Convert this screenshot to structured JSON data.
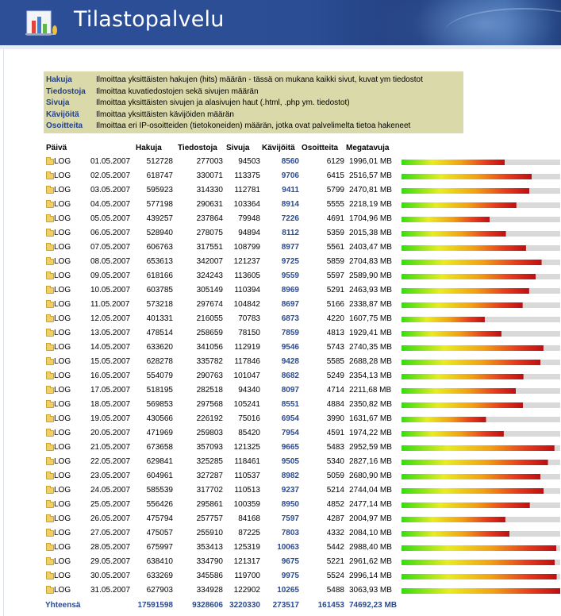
{
  "app": {
    "title": "Tilastopalvelu",
    "logo_icon": "bar-chart-logo-icon"
  },
  "legend": [
    {
      "term": "Hakuja",
      "desc": "Ilmoittaa yksittäisten hakujen (hits) määrän - tässä on mukana kaikki sivut, kuvat ym tiedostot"
    },
    {
      "term": "Tiedostoja",
      "desc": "Ilmoittaa kuvatiedostojen sekä sivujen määrän"
    },
    {
      "term": "Sivuja",
      "desc": "Ilmoittaa yksittäisten sivujen ja alasivujen haut (.html, .php ym. tiedostot)"
    },
    {
      "term": "Kävijöitä",
      "desc": "Ilmoittaa yksittäisten kävijöiden määrän"
    },
    {
      "term": "Osoitteita",
      "desc": "Ilmoittaa eri IP-osoitteiden (tietokoneiden) määrän, jotka ovat palvelimelta tietoa hakeneet"
    }
  ],
  "table": {
    "headers": {
      "day": "Päivä",
      "hakuja": "Hakuja",
      "tiedostoja": "Tiedostoja",
      "sivuja": "Sivuja",
      "kavijoita": "Kävijöitä",
      "osoitteita": "Osoitteita",
      "megatavuja": "Megatavuja"
    },
    "log_label": "LOG",
    "bar_max_mb": 3063.93,
    "rows": [
      {
        "date": "01.05.2007",
        "hakuja": "512728",
        "tiedostoja": "277003",
        "sivuja": "94503",
        "kavijoita": "8560",
        "osoitteita": "6129",
        "mb": "1996,01 MB",
        "mb_value": 1996.01
      },
      {
        "date": "02.05.2007",
        "hakuja": "618747",
        "tiedostoja": "330071",
        "sivuja": "113375",
        "kavijoita": "9706",
        "osoitteita": "6415",
        "mb": "2516,57 MB",
        "mb_value": 2516.57
      },
      {
        "date": "03.05.2007",
        "hakuja": "595923",
        "tiedostoja": "314330",
        "sivuja": "112781",
        "kavijoita": "9411",
        "osoitteita": "5799",
        "mb": "2470,81 MB",
        "mb_value": 2470.81
      },
      {
        "date": "04.05.2007",
        "hakuja": "577198",
        "tiedostoja": "290631",
        "sivuja": "103364",
        "kavijoita": "8914",
        "osoitteita": "5555",
        "mb": "2218,19 MB",
        "mb_value": 2218.19
      },
      {
        "date": "05.05.2007",
        "hakuja": "439257",
        "tiedostoja": "237864",
        "sivuja": "79948",
        "kavijoita": "7226",
        "osoitteita": "4691",
        "mb": "1704,96 MB",
        "mb_value": 1704.96
      },
      {
        "date": "06.05.2007",
        "hakuja": "528940",
        "tiedostoja": "278075",
        "sivuja": "94894",
        "kavijoita": "8112",
        "osoitteita": "5359",
        "mb": "2015,38 MB",
        "mb_value": 2015.38
      },
      {
        "date": "07.05.2007",
        "hakuja": "606763",
        "tiedostoja": "317551",
        "sivuja": "108799",
        "kavijoita": "8977",
        "osoitteita": "5561",
        "mb": "2403,47 MB",
        "mb_value": 2403.47
      },
      {
        "date": "08.05.2007",
        "hakuja": "653613",
        "tiedostoja": "342007",
        "sivuja": "121237",
        "kavijoita": "9725",
        "osoitteita": "5859",
        "mb": "2704,83 MB",
        "mb_value": 2704.83
      },
      {
        "date": "09.05.2007",
        "hakuja": "618166",
        "tiedostoja": "324243",
        "sivuja": "113605",
        "kavijoita": "9559",
        "osoitteita": "5597",
        "mb": "2589,90 MB",
        "mb_value": 2589.9
      },
      {
        "date": "10.05.2007",
        "hakuja": "603785",
        "tiedostoja": "305149",
        "sivuja": "110394",
        "kavijoita": "8969",
        "osoitteita": "5291",
        "mb": "2463,93 MB",
        "mb_value": 2463.93
      },
      {
        "date": "11.05.2007",
        "hakuja": "573218",
        "tiedostoja": "297674",
        "sivuja": "104842",
        "kavijoita": "8697",
        "osoitteita": "5166",
        "mb": "2338,87 MB",
        "mb_value": 2338.87
      },
      {
        "date": "12.05.2007",
        "hakuja": "401331",
        "tiedostoja": "216055",
        "sivuja": "70783",
        "kavijoita": "6873",
        "osoitteita": "4220",
        "mb": "1607,75 MB",
        "mb_value": 1607.75
      },
      {
        "date": "13.05.2007",
        "hakuja": "478514",
        "tiedostoja": "258659",
        "sivuja": "78150",
        "kavijoita": "7859",
        "osoitteita": "4813",
        "mb": "1929,41 MB",
        "mb_value": 1929.41
      },
      {
        "date": "14.05.2007",
        "hakuja": "633620",
        "tiedostoja": "341056",
        "sivuja": "112919",
        "kavijoita": "9546",
        "osoitteita": "5743",
        "mb": "2740,35 MB",
        "mb_value": 2740.35
      },
      {
        "date": "15.05.2007",
        "hakuja": "628278",
        "tiedostoja": "335782",
        "sivuja": "117846",
        "kavijoita": "9428",
        "osoitteita": "5585",
        "mb": "2688,28 MB",
        "mb_value": 2688.28
      },
      {
        "date": "16.05.2007",
        "hakuja": "554079",
        "tiedostoja": "290763",
        "sivuja": "101047",
        "kavijoita": "8682",
        "osoitteita": "5249",
        "mb": "2354,13 MB",
        "mb_value": 2354.13
      },
      {
        "date": "17.05.2007",
        "hakuja": "518195",
        "tiedostoja": "282518",
        "sivuja": "94340",
        "kavijoita": "8097",
        "osoitteita": "4714",
        "mb": "2211,68 MB",
        "mb_value": 2211.68
      },
      {
        "date": "18.05.2007",
        "hakuja": "569853",
        "tiedostoja": "297568",
        "sivuja": "105241",
        "kavijoita": "8551",
        "osoitteita": "4884",
        "mb": "2350,82 MB",
        "mb_value": 2350.82
      },
      {
        "date": "19.05.2007",
        "hakuja": "430566",
        "tiedostoja": "226192",
        "sivuja": "75016",
        "kavijoita": "6954",
        "osoitteita": "3990",
        "mb": "1631,67 MB",
        "mb_value": 1631.67
      },
      {
        "date": "20.05.2007",
        "hakuja": "471969",
        "tiedostoja": "259803",
        "sivuja": "85420",
        "kavijoita": "7954",
        "osoitteita": "4591",
        "mb": "1974,22 MB",
        "mb_value": 1974.22
      },
      {
        "date": "21.05.2007",
        "hakuja": "673658",
        "tiedostoja": "357093",
        "sivuja": "121325",
        "kavijoita": "9665",
        "osoitteita": "5483",
        "mb": "2952,59 MB",
        "mb_value": 2952.59
      },
      {
        "date": "22.05.2007",
        "hakuja": "629841",
        "tiedostoja": "325285",
        "sivuja": "118461",
        "kavijoita": "9505",
        "osoitteita": "5340",
        "mb": "2827,16 MB",
        "mb_value": 2827.16
      },
      {
        "date": "23.05.2007",
        "hakuja": "604961",
        "tiedostoja": "327287",
        "sivuja": "110537",
        "kavijoita": "8982",
        "osoitteita": "5059",
        "mb": "2680,90 MB",
        "mb_value": 2680.9
      },
      {
        "date": "24.05.2007",
        "hakuja": "585539",
        "tiedostoja": "317702",
        "sivuja": "110513",
        "kavijoita": "9237",
        "osoitteita": "5214",
        "mb": "2744,04 MB",
        "mb_value": 2744.04
      },
      {
        "date": "25.05.2007",
        "hakuja": "556426",
        "tiedostoja": "295861",
        "sivuja": "100359",
        "kavijoita": "8950",
        "osoitteita": "4852",
        "mb": "2477,14 MB",
        "mb_value": 2477.14
      },
      {
        "date": "26.05.2007",
        "hakuja": "475794",
        "tiedostoja": "257757",
        "sivuja": "84168",
        "kavijoita": "7597",
        "osoitteita": "4287",
        "mb": "2004,97 MB",
        "mb_value": 2004.97
      },
      {
        "date": "27.05.2007",
        "hakuja": "475057",
        "tiedostoja": "255910",
        "sivuja": "87225",
        "kavijoita": "7803",
        "osoitteita": "4332",
        "mb": "2084,10 MB",
        "mb_value": 2084.1
      },
      {
        "date": "28.05.2007",
        "hakuja": "675997",
        "tiedostoja": "353413",
        "sivuja": "125319",
        "kavijoita": "10063",
        "osoitteita": "5442",
        "mb": "2988,40 MB",
        "mb_value": 2988.4
      },
      {
        "date": "29.05.2007",
        "hakuja": "638410",
        "tiedostoja": "334790",
        "sivuja": "121317",
        "kavijoita": "9675",
        "osoitteita": "5221",
        "mb": "2961,62 MB",
        "mb_value": 2961.62
      },
      {
        "date": "30.05.2007",
        "hakuja": "633269",
        "tiedostoja": "345586",
        "sivuja": "119700",
        "kavijoita": "9975",
        "osoitteita": "5524",
        "mb": "2996,14 MB",
        "mb_value": 2996.14
      },
      {
        "date": "31.05.2007",
        "hakuja": "627903",
        "tiedostoja": "334928",
        "sivuja": "122902",
        "kavijoita": "10265",
        "osoitteita": "5488",
        "mb": "3063,93 MB",
        "mb_value": 3063.93
      }
    ],
    "totals": {
      "label": "Yhteensä",
      "hakuja": "17591598",
      "tiedostoja": "9328606",
      "sivuja": "3220330",
      "kavijoita": "273517",
      "osoitteita": "161453",
      "mb": "74692,23 MB"
    }
  }
}
